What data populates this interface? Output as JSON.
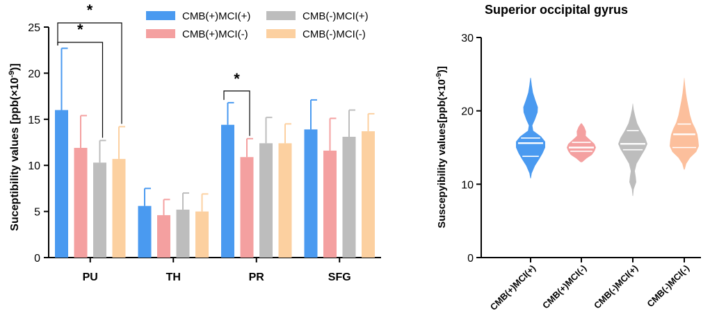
{
  "chart_data": [
    {
      "type": "bar",
      "title": "",
      "xlabel": "",
      "ylabel": "Suceptibility values [ppb(×10",
      "ylabel_exponent": "-9",
      "ylabel_close": ")]",
      "ylim": [
        0,
        25
      ],
      "yticks": [
        0,
        5,
        10,
        15,
        20,
        25
      ],
      "categories": [
        "PU",
        "TH",
        "PR",
        "SFG"
      ],
      "series": [
        {
          "name": "CMB(+)MCI(+)",
          "color": "#4a9af0",
          "values": [
            16.0,
            5.6,
            14.4,
            13.9
          ],
          "errors": [
            6.7,
            1.9,
            2.4,
            3.2
          ]
        },
        {
          "name": "CMB(+)MCI(-)",
          "color": "#f4a0a0",
          "values": [
            11.9,
            4.6,
            10.9,
            11.6
          ],
          "errors": [
            3.5,
            1.7,
            2.0,
            3.5
          ]
        },
        {
          "name": "CMB(-)MCI(+)",
          "color": "#bdbdbd",
          "values": [
            10.3,
            5.2,
            12.4,
            13.1
          ],
          "errors": [
            2.4,
            1.8,
            2.8,
            2.9
          ]
        },
        {
          "name": "CMB(-)MCI(-)",
          "color": "#fcd0a0",
          "values": [
            10.7,
            5.0,
            12.4,
            13.7
          ],
          "errors": [
            3.5,
            1.9,
            2.1,
            1.9
          ]
        }
      ],
      "significance": [
        {
          "category": "PU",
          "from_series": 0,
          "to_series": 3,
          "label": "*"
        },
        {
          "category": "PU",
          "from_series": 0,
          "to_series": 2,
          "label": "*"
        },
        {
          "category": "PR",
          "from_series": 0,
          "to_series": 1,
          "label": "*"
        }
      ]
    },
    {
      "type": "violin",
      "title": "Superior occipital gyrus",
      "xlabel": "",
      "ylabel": "Suscepyibility values[ppb(×10",
      "ylabel_exponent": "-9",
      "ylabel_close": ")]",
      "ylim": [
        0,
        30
      ],
      "yticks": [
        0,
        10,
        20,
        30
      ],
      "categories": [
        "CMB(+)MCI(+)",
        "CMB(+)MCI(-)",
        "CMB(-)MCI(+)",
        "CMB(-)MCI(-)"
      ],
      "violins": [
        {
          "name": "CMB(+)MCI(+)",
          "color": "#4a9af0",
          "min": 10.8,
          "max": 24.5,
          "q1": 13.8,
          "median": 15.6,
          "q3": 16.3,
          "density": [
            [
              10.8,
              0.02
            ],
            [
              11.5,
              0.08
            ],
            [
              12.5,
              0.3
            ],
            [
              13.5,
              0.62
            ],
            [
              14.2,
              0.82
            ],
            [
              15.0,
              1.0
            ],
            [
              15.8,
              1.0
            ],
            [
              16.5,
              0.72
            ],
            [
              17.3,
              0.18
            ],
            [
              18.0,
              0.12
            ],
            [
              18.8,
              0.3
            ],
            [
              19.8,
              0.48
            ],
            [
              20.5,
              0.5
            ],
            [
              21.5,
              0.32
            ],
            [
              22.5,
              0.16
            ],
            [
              23.5,
              0.08
            ],
            [
              24.5,
              0.02
            ]
          ]
        },
        {
          "name": "CMB(+)MCI(-)",
          "color": "#f4a0a0",
          "min": 13.0,
          "max": 18.3,
          "q1": 14.5,
          "median": 15.0,
          "q3": 15.7,
          "density": [
            [
              13.0,
              0.05
            ],
            [
              13.5,
              0.35
            ],
            [
              14.0,
              0.72
            ],
            [
              14.5,
              0.9
            ],
            [
              15.0,
              1.0
            ],
            [
              15.5,
              0.9
            ],
            [
              16.0,
              0.62
            ],
            [
              16.6,
              0.3
            ],
            [
              17.2,
              0.32
            ],
            [
              17.8,
              0.2
            ],
            [
              18.3,
              0.03
            ]
          ]
        },
        {
          "name": "CMB(-)MCI(+)",
          "color": "#bdbdbd",
          "min": 8.4,
          "max": 21.0,
          "q1": 14.7,
          "median": 15.5,
          "q3": 17.3,
          "density": [
            [
              8.4,
              0.02
            ],
            [
              9.3,
              0.06
            ],
            [
              10.3,
              0.24
            ],
            [
              11.0,
              0.2
            ],
            [
              11.8,
              0.14
            ],
            [
              12.8,
              0.26
            ],
            [
              13.8,
              0.55
            ],
            [
              14.8,
              0.85
            ],
            [
              15.5,
              1.0
            ],
            [
              16.3,
              0.85
            ],
            [
              17.3,
              0.55
            ],
            [
              18.3,
              0.3
            ],
            [
              19.3,
              0.16
            ],
            [
              20.2,
              0.06
            ],
            [
              21.0,
              0.01
            ]
          ]
        },
        {
          "name": "CMB(-)MCI(-)",
          "color": "#fcbf9c",
          "min": 12.0,
          "max": 24.5,
          "q1": 15.0,
          "median": 16.8,
          "q3": 18.2,
          "density": [
            [
              12.0,
              0.03
            ],
            [
              12.8,
              0.14
            ],
            [
              13.6,
              0.4
            ],
            [
              14.4,
              0.82
            ],
            [
              15.2,
              1.0
            ],
            [
              16.0,
              0.96
            ],
            [
              16.8,
              0.9
            ],
            [
              17.6,
              0.75
            ],
            [
              18.4,
              0.55
            ],
            [
              19.4,
              0.4
            ],
            [
              20.4,
              0.3
            ],
            [
              21.4,
              0.2
            ],
            [
              22.4,
              0.12
            ],
            [
              23.4,
              0.06
            ],
            [
              24.5,
              0.01
            ]
          ]
        }
      ]
    }
  ]
}
